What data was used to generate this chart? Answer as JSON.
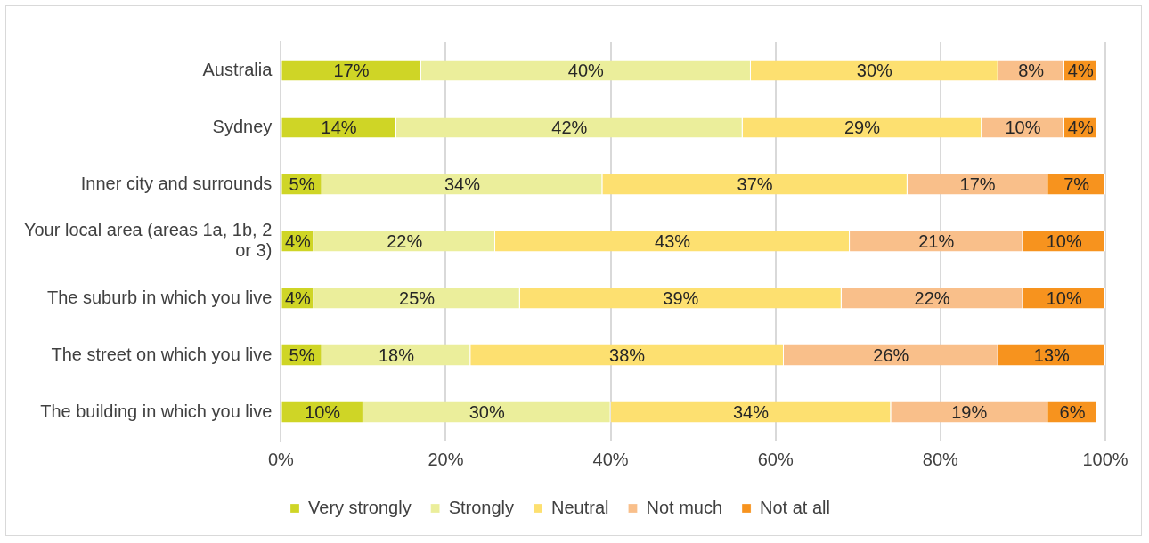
{
  "chart_data": {
    "type": "bar",
    "orientation": "horizontal",
    "stacked": true,
    "categories": [
      "Australia",
      "Sydney",
      "Inner city and surrounds",
      "Your local area (areas 1a, 1b, 2 or 3)",
      "The suburb in which you live",
      "The street on which you live",
      "The building in which you live"
    ],
    "series": [
      {
        "name": "Very strongly",
        "color": "#cfd526",
        "values": [
          17,
          14,
          5,
          4,
          4,
          5,
          10
        ],
        "value_labels": [
          "17%",
          "14%",
          "5%",
          "4%",
          "4%",
          "5%",
          "10%"
        ]
      },
      {
        "name": "Strongly",
        "color": "#ebee9b",
        "values": [
          40,
          42,
          34,
          22,
          25,
          18,
          30
        ],
        "value_labels": [
          "40%",
          "42%",
          "34%",
          "22%",
          "25%",
          "18%",
          "30%"
        ]
      },
      {
        "name": "Neutral",
        "color": "#fde070",
        "values": [
          30,
          29,
          37,
          43,
          39,
          38,
          34
        ],
        "value_labels": [
          "30%",
          "29%",
          "37%",
          "43%",
          "39%",
          "38%",
          "34%"
        ]
      },
      {
        "name": "Not much",
        "color": "#f9bf8a",
        "values": [
          8,
          10,
          17,
          21,
          22,
          26,
          19
        ],
        "value_labels": [
          "8%",
          "10%",
          "17%",
          "21%",
          "22%",
          "26%",
          "19%"
        ]
      },
      {
        "name": "Not at all",
        "color": "#f7931e",
        "values": [
          4,
          4,
          7,
          10,
          10,
          13,
          6
        ],
        "value_labels": [
          "4%",
          "4%",
          "7%",
          "10%",
          "10%",
          "13%",
          "6%"
        ]
      }
    ],
    "xlim": [
      0,
      100
    ],
    "xticks": [
      {
        "value": 0,
        "label": "0%"
      },
      {
        "value": 20,
        "label": "20%"
      },
      {
        "value": 40,
        "label": "40%"
      },
      {
        "value": 60,
        "label": "60%"
      },
      {
        "value": 80,
        "label": "80%"
      },
      {
        "value": 100,
        "label": "100%"
      }
    ],
    "grid": "x",
    "legend": "bottom"
  }
}
